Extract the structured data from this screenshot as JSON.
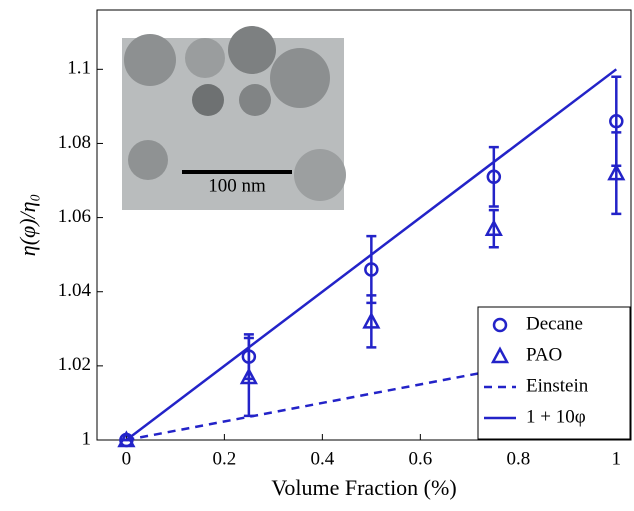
{
  "chart_data": {
    "type": "line",
    "x_label": "Volume Fraction (%)",
    "y_label": "η(φ)/η₀",
    "xlim": [
      -0.06,
      1.03
    ],
    "ylim": [
      1,
      1.116
    ],
    "xticks": [
      0,
      0.2,
      0.4,
      0.6,
      0.8,
      1
    ],
    "yticks": [
      1,
      1.02,
      1.04,
      1.06,
      1.08,
      1.1
    ],
    "legend": "lower right",
    "series": [
      {
        "name": "Decane",
        "color": "#2323c8",
        "marker": "circle",
        "x": [
          0,
          0.25,
          0.5,
          0.75,
          1
        ],
        "values": [
          1,
          1.0225,
          1.046,
          1.071,
          1.086
        ],
        "errors": [
          0,
          0.006,
          0.009,
          0.008,
          0.012
        ]
      },
      {
        "name": "PAO",
        "color": "#2323c8",
        "marker": "triangle",
        "x": [
          0,
          0.25,
          0.5,
          0.75,
          1
        ],
        "values": [
          1,
          1.017,
          1.032,
          1.057,
          1.072
        ],
        "errors": [
          0,
          0.0105,
          0.007,
          0.005,
          0.011
        ]
      },
      {
        "name": "Einstein",
        "color": "#2323c8",
        "dash": true,
        "x": [
          0,
          1
        ],
        "values": [
          1,
          1.025
        ]
      },
      {
        "name": "1 + 10φ",
        "color": "#2323c8",
        "dash": false,
        "x": [
          0,
          1
        ],
        "values": [
          1,
          1.1
        ]
      }
    ]
  },
  "inset": {
    "scale_bar_label": "100 nm"
  }
}
